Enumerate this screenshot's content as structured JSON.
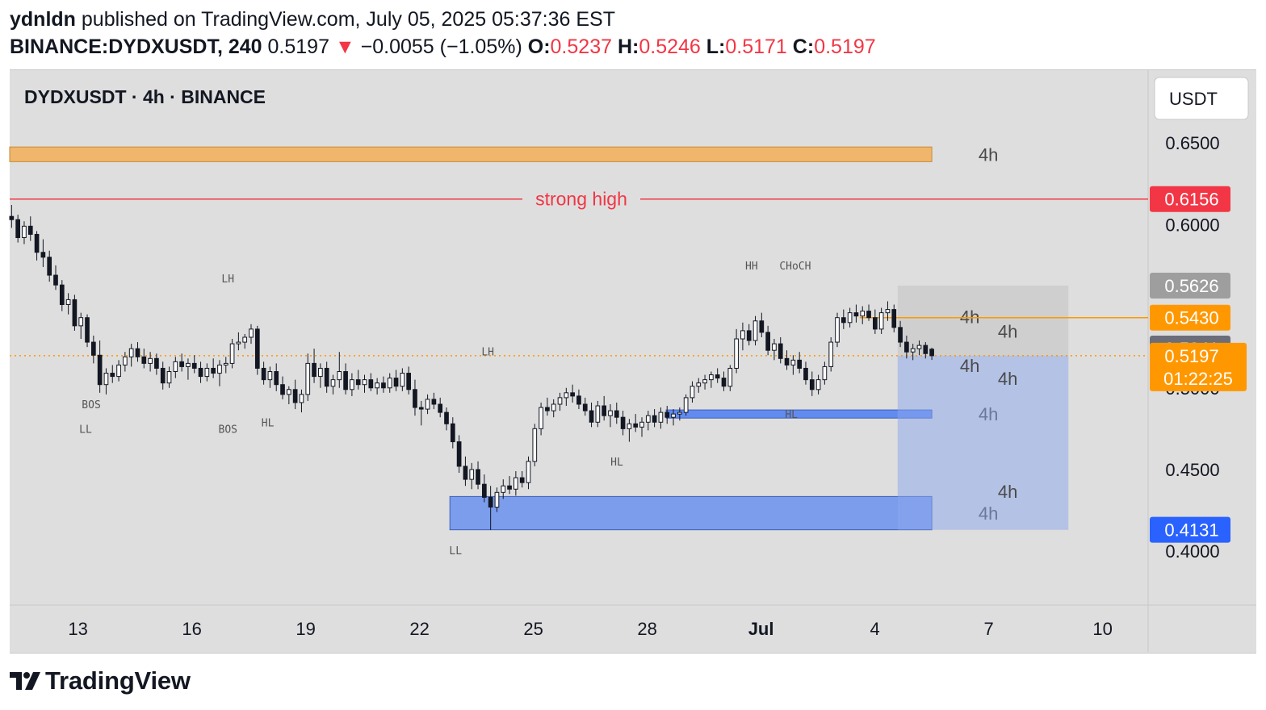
{
  "header": {
    "author": "ydnldn",
    "published_text": "published on TradingView.com, July 05, 2025 05:37:36 EST",
    "symbol": "BINANCE:DYDXUSDT, 240",
    "last_price": "0.5197",
    "change_arrow": "▼",
    "change": "−0.0055 (−1.05%)",
    "open_label": "O:",
    "open": "0.5237",
    "high_label": "H:",
    "high": "0.5246",
    "low_label": "L:",
    "low": "0.5171",
    "close_label": "C:",
    "close": "0.5197"
  },
  "chart_title": "DYDXUSDT · 4h · BINANCE",
  "currency_button": "USDT",
  "footer": {
    "brand": "TradingView"
  },
  "colors": {
    "background": "#dedede",
    "up_candle": "#ffffff",
    "down_candle": "#131722",
    "strong_high": "#f23645",
    "resistance_zone": "#f0b66b",
    "demand_zone": "#5b86f0",
    "current_price": "#ff9800"
  },
  "chart_data": {
    "type": "candlestick",
    "title": "DYDXUSDT · 4h · BINANCE",
    "y_axis": {
      "ticks": [
        0.65,
        0.6,
        0.5,
        0.45,
        0.4
      ],
      "tick_labels": [
        "0.6500",
        "0.6000",
        "0.5000",
        "0.4500",
        "0.4000"
      ],
      "range": [
        0.367,
        0.695
      ]
    },
    "x_axis": {
      "tick_labels": [
        "13",
        "16",
        "19",
        "22",
        "25",
        "28",
        "Jul",
        "4",
        "7",
        "10"
      ],
      "tick_days": [
        13,
        16,
        19,
        22,
        25,
        28,
        31,
        34,
        37,
        40
      ],
      "range_days": [
        11.2,
        41.2
      ]
    },
    "price_badges": [
      {
        "label": "0.6156",
        "value": 0.6156,
        "color": "#f23645"
      },
      {
        "label": "0.5626",
        "value": 0.5626,
        "color": "#9e9e9e"
      },
      {
        "label": "0.5430",
        "value": 0.543,
        "color": "#ff9800"
      },
      {
        "label": "0.5241",
        "value": 0.5241,
        "color": "#6b6e79"
      },
      {
        "label": "0.5197",
        "sublabel": "01:22:25",
        "value": 0.5197,
        "color": "#ff9800"
      },
      {
        "label": "0.4131",
        "value": 0.4131,
        "color": "#2962ff"
      }
    ],
    "levels": [
      {
        "label": "strong high",
        "value": 0.6156,
        "from_day": 11.2,
        "to_day": 41.2
      },
      {
        "label": "",
        "value": 0.543,
        "from_day": 33.6,
        "to_day": 41.2
      },
      {
        "label": "",
        "value": 0.5197,
        "from_day": 11.2,
        "to_day": 41.2,
        "style": "dotted"
      }
    ],
    "zones": [
      {
        "name": "resistance",
        "from_day": 11.2,
        "to_day": 35.5,
        "low": 0.6385,
        "high": 0.6475,
        "label": "4h"
      },
      {
        "name": "demand-upper",
        "from_day": 28.5,
        "to_day": 35.5,
        "low": 0.4815,
        "high": 0.4865,
        "label": "4h"
      },
      {
        "name": "demand-lower",
        "from_day": 22.8,
        "to_day": 35.5,
        "low": 0.4131,
        "high": 0.4335,
        "label": "4h"
      },
      {
        "name": "position-stop",
        "from_day": 34.6,
        "to_day": 39.1,
        "low": 0.5197,
        "high": 0.5626,
        "label": "4h"
      },
      {
        "name": "position-target",
        "from_day": 34.6,
        "to_day": 39.1,
        "low": 0.4131,
        "high": 0.5197,
        "label": "4h"
      }
    ],
    "zone_labels": [
      {
        "text": "4h",
        "day": 36.5,
        "value": 0.5436
      },
      {
        "text": "4h",
        "day": 37.5,
        "value": 0.5348
      },
      {
        "text": "4h",
        "day": 36.5,
        "value": 0.5137
      },
      {
        "text": "4h",
        "day": 37.5,
        "value": 0.5058
      },
      {
        "text": "4h",
        "day": 37.5,
        "value": 0.4367
      }
    ],
    "annotations": [
      {
        "text": "LH",
        "day": 16.95,
        "value": 0.5645
      },
      {
        "text": "LH",
        "day": 23.8,
        "value": 0.5198
      },
      {
        "text": "HH",
        "day": 30.75,
        "value": 0.5725
      },
      {
        "text": "CHoCH",
        "day": 31.9,
        "value": 0.5725
      },
      {
        "text": "BOS",
        "day": 13.35,
        "value": 0.4875
      },
      {
        "text": "BOS",
        "day": 16.95,
        "value": 0.4725
      },
      {
        "text": "HL",
        "day": 18.0,
        "value": 0.4765
      },
      {
        "text": "LL",
        "day": 13.2,
        "value": 0.4725
      },
      {
        "text": "HL",
        "day": 27.2,
        "value": 0.4525
      },
      {
        "text": "HL",
        "day": 31.8,
        "value": 0.4815
      },
      {
        "text": "LL",
        "day": 22.95,
        "value": 0.3982
      }
    ],
    "candles_ohlc": [
      [
        0.605,
        0.612,
        0.598,
        0.603
      ],
      [
        0.603,
        0.606,
        0.589,
        0.592
      ],
      [
        0.592,
        0.602,
        0.588,
        0.599
      ],
      [
        0.599,
        0.605,
        0.59,
        0.594
      ],
      [
        0.594,
        0.596,
        0.578,
        0.583
      ],
      [
        0.583,
        0.591,
        0.574,
        0.58
      ],
      [
        0.58,
        0.584,
        0.565,
        0.569
      ],
      [
        0.569,
        0.575,
        0.56,
        0.563
      ],
      [
        0.563,
        0.566,
        0.547,
        0.551
      ],
      [
        0.551,
        0.558,
        0.545,
        0.554
      ],
      [
        0.554,
        0.557,
        0.535,
        0.538
      ],
      [
        0.538,
        0.546,
        0.53,
        0.543
      ],
      [
        0.543,
        0.545,
        0.525,
        0.528
      ],
      [
        0.528,
        0.532,
        0.515,
        0.52
      ],
      [
        0.52,
        0.529,
        0.497,
        0.502
      ],
      [
        0.502,
        0.512,
        0.496,
        0.509
      ],
      [
        0.509,
        0.514,
        0.503,
        0.507
      ],
      [
        0.507,
        0.517,
        0.504,
        0.514
      ],
      [
        0.514,
        0.522,
        0.51,
        0.519
      ],
      [
        0.519,
        0.527,
        0.513,
        0.524
      ],
      [
        0.524,
        0.528,
        0.516,
        0.519
      ],
      [
        0.519,
        0.524,
        0.512,
        0.515
      ],
      [
        0.515,
        0.522,
        0.51,
        0.518
      ],
      [
        0.518,
        0.521,
        0.508,
        0.512
      ],
      [
        0.512,
        0.516,
        0.499,
        0.503
      ],
      [
        0.503,
        0.513,
        0.5,
        0.51
      ],
      [
        0.51,
        0.519,
        0.506,
        0.516
      ],
      [
        0.516,
        0.521,
        0.51,
        0.513
      ],
      [
        0.513,
        0.518,
        0.505,
        0.515
      ],
      [
        0.515,
        0.52,
        0.509,
        0.512
      ],
      [
        0.512,
        0.516,
        0.503,
        0.507
      ],
      [
        0.507,
        0.515,
        0.504,
        0.512
      ],
      [
        0.512,
        0.518,
        0.506,
        0.509
      ],
      [
        0.509,
        0.517,
        0.501,
        0.514
      ],
      [
        0.514,
        0.519,
        0.509,
        0.515
      ],
      [
        0.515,
        0.53,
        0.512,
        0.527
      ],
      [
        0.527,
        0.534,
        0.523,
        0.528
      ],
      [
        0.528,
        0.533,
        0.524,
        0.531
      ],
      [
        0.531,
        0.539,
        0.527,
        0.536
      ],
      [
        0.536,
        0.538,
        0.508,
        0.512
      ],
      [
        0.512,
        0.516,
        0.502,
        0.505
      ],
      [
        0.505,
        0.513,
        0.5,
        0.51
      ],
      [
        0.51,
        0.515,
        0.498,
        0.502
      ],
      [
        0.502,
        0.507,
        0.493,
        0.496
      ],
      [
        0.496,
        0.501,
        0.49,
        0.499
      ],
      [
        0.499,
        0.505,
        0.487,
        0.491
      ],
      [
        0.491,
        0.499,
        0.485,
        0.496
      ],
      [
        0.496,
        0.521,
        0.492,
        0.515
      ],
      [
        0.515,
        0.524,
        0.503,
        0.507
      ],
      [
        0.507,
        0.515,
        0.5,
        0.512
      ],
      [
        0.512,
        0.516,
        0.497,
        0.501
      ],
      [
        0.501,
        0.508,
        0.496,
        0.505
      ],
      [
        0.505,
        0.522,
        0.5,
        0.51
      ],
      [
        0.51,
        0.515,
        0.496,
        0.499
      ],
      [
        0.499,
        0.509,
        0.495,
        0.505
      ],
      [
        0.505,
        0.511,
        0.499,
        0.502
      ],
      [
        0.502,
        0.508,
        0.497,
        0.505
      ],
      [
        0.505,
        0.509,
        0.498,
        0.5
      ],
      [
        0.5,
        0.506,
        0.496,
        0.503
      ],
      [
        0.503,
        0.507,
        0.497,
        0.5
      ],
      [
        0.5,
        0.509,
        0.497,
        0.506
      ],
      [
        0.506,
        0.511,
        0.498,
        0.501
      ],
      [
        0.501,
        0.512,
        0.498,
        0.509
      ],
      [
        0.509,
        0.513,
        0.496,
        0.499
      ],
      [
        0.499,
        0.505,
        0.483,
        0.488
      ],
      [
        0.488,
        0.492,
        0.477,
        0.487
      ],
      [
        0.487,
        0.496,
        0.484,
        0.493
      ],
      [
        0.493,
        0.497,
        0.487,
        0.49
      ],
      [
        0.49,
        0.494,
        0.482,
        0.485
      ],
      [
        0.485,
        0.488,
        0.474,
        0.478
      ],
      [
        0.478,
        0.482,
        0.463,
        0.467
      ],
      [
        0.467,
        0.471,
        0.448,
        0.452
      ],
      [
        0.452,
        0.458,
        0.44,
        0.444
      ],
      [
        0.444,
        0.454,
        0.438,
        0.45
      ],
      [
        0.45,
        0.455,
        0.438,
        0.441
      ],
      [
        0.441,
        0.447,
        0.43,
        0.433
      ],
      [
        0.433,
        0.44,
        0.413,
        0.427
      ],
      [
        0.427,
        0.439,
        0.424,
        0.436
      ],
      [
        0.436,
        0.444,
        0.432,
        0.44
      ],
      [
        0.44,
        0.446,
        0.435,
        0.438
      ],
      [
        0.438,
        0.449,
        0.434,
        0.445
      ],
      [
        0.445,
        0.449,
        0.439,
        0.442
      ],
      [
        0.442,
        0.458,
        0.438,
        0.455
      ],
      [
        0.455,
        0.478,
        0.452,
        0.475
      ],
      [
        0.475,
        0.491,
        0.471,
        0.488
      ],
      [
        0.488,
        0.494,
        0.483,
        0.486
      ],
      [
        0.486,
        0.493,
        0.482,
        0.49
      ],
      [
        0.49,
        0.497,
        0.486,
        0.494
      ],
      [
        0.494,
        0.5,
        0.489,
        0.497
      ],
      [
        0.497,
        0.502,
        0.491,
        0.495
      ],
      [
        0.495,
        0.499,
        0.487,
        0.49
      ],
      [
        0.49,
        0.494,
        0.483,
        0.486
      ],
      [
        0.486,
        0.491,
        0.476,
        0.479
      ],
      [
        0.479,
        0.492,
        0.476,
        0.489
      ],
      [
        0.489,
        0.495,
        0.48,
        0.483
      ],
      [
        0.483,
        0.49,
        0.476,
        0.486
      ],
      [
        0.486,
        0.491,
        0.478,
        0.482
      ],
      [
        0.482,
        0.486,
        0.471,
        0.475
      ],
      [
        0.475,
        0.481,
        0.467,
        0.478
      ],
      [
        0.478,
        0.484,
        0.473,
        0.476
      ],
      [
        0.476,
        0.482,
        0.47,
        0.479
      ],
      [
        0.479,
        0.486,
        0.474,
        0.483
      ],
      [
        0.483,
        0.487,
        0.476,
        0.479
      ],
      [
        0.479,
        0.488,
        0.475,
        0.485
      ],
      [
        0.485,
        0.489,
        0.478,
        0.482
      ],
      [
        0.482,
        0.487,
        0.477,
        0.484
      ],
      [
        0.484,
        0.488,
        0.48,
        0.485
      ],
      [
        0.485,
        0.496,
        0.483,
        0.494
      ],
      [
        0.494,
        0.504,
        0.491,
        0.501
      ],
      [
        0.501,
        0.506,
        0.497,
        0.503
      ],
      [
        0.503,
        0.508,
        0.499,
        0.505
      ],
      [
        0.505,
        0.51,
        0.5,
        0.508
      ],
      [
        0.508,
        0.512,
        0.503,
        0.506
      ],
      [
        0.506,
        0.51,
        0.498,
        0.501
      ],
      [
        0.501,
        0.514,
        0.498,
        0.512
      ],
      [
        0.512,
        0.536,
        0.509,
        0.53
      ],
      [
        0.53,
        0.54,
        0.523,
        0.535
      ],
      [
        0.535,
        0.539,
        0.526,
        0.529
      ],
      [
        0.529,
        0.544,
        0.526,
        0.541
      ],
      [
        0.541,
        0.546,
        0.531,
        0.534
      ],
      [
        0.534,
        0.538,
        0.52,
        0.523
      ],
      [
        0.523,
        0.53,
        0.517,
        0.527
      ],
      [
        0.527,
        0.531,
        0.515,
        0.518
      ],
      [
        0.518,
        0.523,
        0.511,
        0.514
      ],
      [
        0.514,
        0.52,
        0.508,
        0.517
      ],
      [
        0.517,
        0.522,
        0.509,
        0.512
      ],
      [
        0.512,
        0.516,
        0.502,
        0.505
      ],
      [
        0.505,
        0.51,
        0.495,
        0.499
      ],
      [
        0.499,
        0.508,
        0.496,
        0.505
      ],
      [
        0.505,
        0.516,
        0.502,
        0.513
      ],
      [
        0.513,
        0.531,
        0.51,
        0.528
      ],
      [
        0.528,
        0.546,
        0.525,
        0.543
      ],
      [
        0.543,
        0.548,
        0.536,
        0.54
      ],
      [
        0.54,
        0.549,
        0.537,
        0.546
      ],
      [
        0.546,
        0.551,
        0.54,
        0.544
      ],
      [
        0.544,
        0.55,
        0.539,
        0.547
      ],
      [
        0.547,
        0.551,
        0.541,
        0.543
      ],
      [
        0.543,
        0.548,
        0.533,
        0.536
      ],
      [
        0.536,
        0.549,
        0.533,
        0.546
      ],
      [
        0.546,
        0.553,
        0.541,
        0.548
      ],
      [
        0.548,
        0.551,
        0.534,
        0.537
      ],
      [
        0.537,
        0.541,
        0.525,
        0.528
      ],
      [
        0.528,
        0.532,
        0.518,
        0.522
      ],
      [
        0.522,
        0.527,
        0.517,
        0.524
      ],
      [
        0.524,
        0.529,
        0.52,
        0.526
      ],
      [
        0.526,
        0.528,
        0.518,
        0.521
      ],
      [
        0.5237,
        0.5246,
        0.5171,
        0.5197
      ]
    ]
  }
}
